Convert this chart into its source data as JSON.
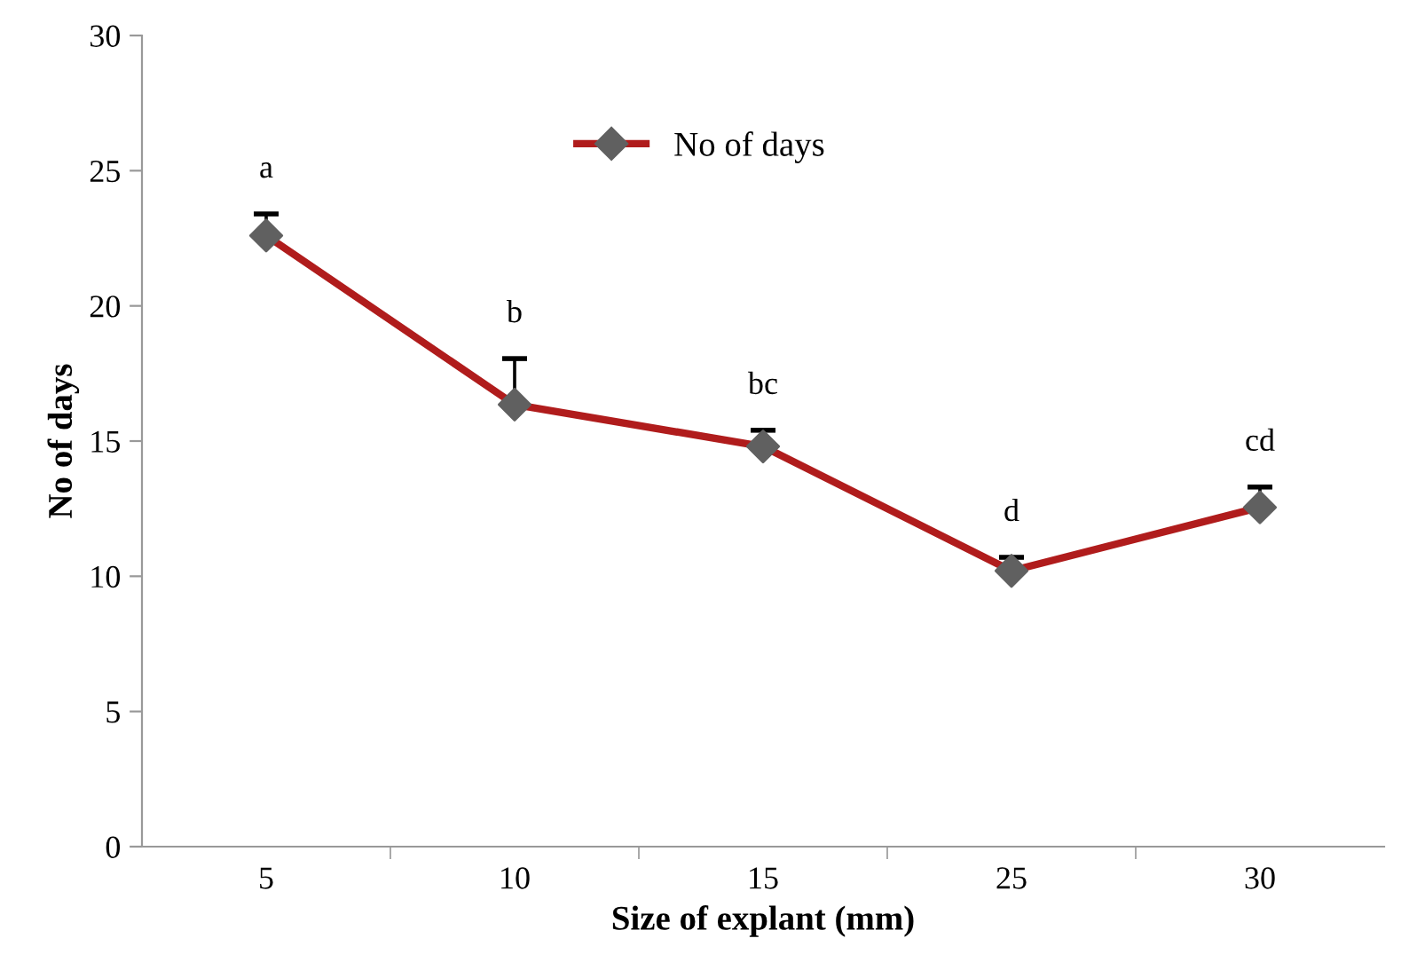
{
  "chart_data": {
    "type": "line",
    "xlabel": "Size of explant (mm)",
    "ylabel": "No of days",
    "categories": [
      "5",
      "10",
      "15",
      "25",
      "30"
    ],
    "series": [
      {
        "name": "No of days",
        "color": "#b01c1c",
        "colors": [
          "#606060",
          "#606060",
          "#606060",
          "#606060",
          "#606060"
        ],
        "values": [
          22.6,
          16.35,
          14.8,
          10.2,
          12.55
        ],
        "errors": [
          [
            22.6,
            23.4
          ],
          [
            16.35,
            18.05
          ],
          [
            14.8,
            15.4
          ],
          [
            10.2,
            10.7
          ],
          [
            12.55,
            13.3
          ]
        ]
      }
    ],
    "annotations": [
      {
        "text": "a",
        "x": "5",
        "y": 23.4
      },
      {
        "text": "b",
        "x": "10",
        "y": 18.05
      },
      {
        "text": "bc",
        "x": "15",
        "y": 15.4
      },
      {
        "text": "d",
        "x": "25",
        "y": 10.7
      },
      {
        "text": "cd",
        "x": "30",
        "y": 13.3
      }
    ],
    "ylim": [
      0,
      30
    ],
    "yticks": [
      0,
      5,
      10,
      15,
      20,
      25,
      30
    ],
    "grid": false,
    "legend": "top",
    "marker": "diamond",
    "line_style": "solid"
  }
}
